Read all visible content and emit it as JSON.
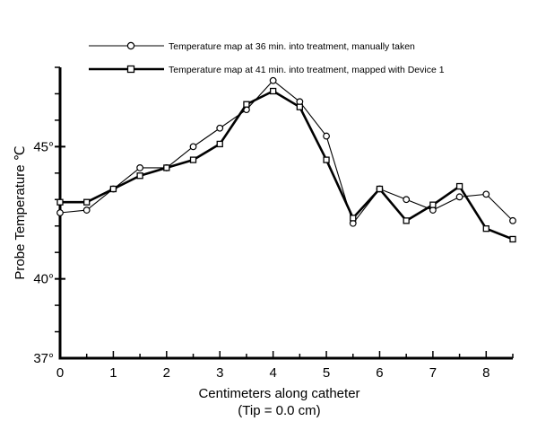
{
  "chart_data": {
    "type": "line",
    "xlabel": "Centimeters along catheter",
    "xlabel_sub": "(Tip = 0.0 cm)",
    "ylabel": "Probe Temperature ℃",
    "xlim": [
      0,
      8.5
    ],
    "ylim": [
      37,
      48
    ],
    "x_ticks": [
      {
        "value": 0,
        "label": "0"
      },
      {
        "value": 1,
        "label": "1"
      },
      {
        "value": 2,
        "label": "2"
      },
      {
        "value": 3,
        "label": "3"
      },
      {
        "value": 4,
        "label": "4"
      },
      {
        "value": 5,
        "label": "5"
      },
      {
        "value": 6,
        "label": "6"
      },
      {
        "value": 7,
        "label": "7"
      },
      {
        "value": 8,
        "label": "8"
      }
    ],
    "y_ticks": [
      {
        "value": 37,
        "label": "37°"
      },
      {
        "value": 40,
        "label": "40°"
      },
      {
        "value": 45,
        "label": "45°"
      }
    ],
    "y_minor_step": 1,
    "x_minor_step": 0.5,
    "grid": false,
    "legend_position": "top",
    "series": [
      {
        "name": "Temperature map at 36 min. into treatment, manually taken",
        "marker": "circle",
        "line_weight": "thin",
        "x": [
          0,
          0.5,
          1,
          1.5,
          2,
          2.5,
          3,
          3.5,
          4,
          4.5,
          5,
          5.5,
          6,
          6.5,
          7,
          7.5,
          8,
          8.5
        ],
        "y": [
          42.5,
          42.6,
          43.4,
          44.2,
          44.2,
          45.0,
          45.7,
          46.4,
          47.5,
          46.7,
          45.4,
          42.1,
          43.4,
          43.0,
          42.6,
          43.1,
          43.2,
          42.2
        ]
      },
      {
        "name": "Temperature map at 41 min. into treatment, mapped with Device 1",
        "marker": "square",
        "line_weight": "thick",
        "x": [
          0,
          0.5,
          1,
          1.5,
          2,
          2.5,
          3,
          3.5,
          4,
          4.5,
          5,
          5.5,
          6,
          6.5,
          7,
          7.5,
          8,
          8.5
        ],
        "y": [
          42.9,
          42.9,
          43.4,
          43.9,
          44.2,
          44.5,
          45.1,
          46.6,
          47.1,
          46.5,
          44.5,
          42.3,
          43.4,
          42.2,
          42.8,
          43.5,
          41.9,
          41.5
        ]
      }
    ]
  }
}
